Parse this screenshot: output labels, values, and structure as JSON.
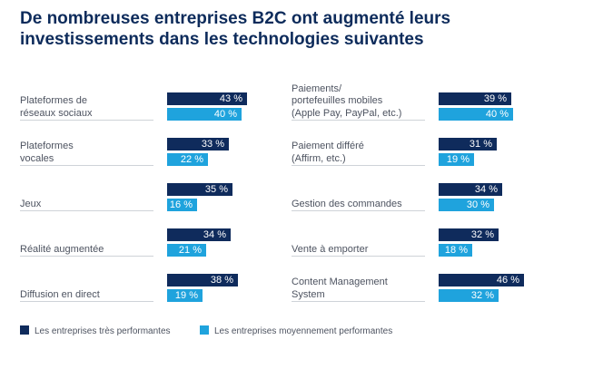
{
  "title_lines": [
    "De nombreuses entreprises B2C ont augmenté leurs",
    "investissements dans les technologies suivantes"
  ],
  "colors": {
    "high_performers": "#0f2b5c",
    "average_performers": "#1fa3dd"
  },
  "legend": {
    "high": "Les entreprises très performantes",
    "average": "Les entreprises moyennement performantes"
  },
  "chart_data": {
    "type": "bar",
    "orientation": "horizontal",
    "value_suffix": " %",
    "xlim": [
      0,
      50
    ],
    "grid": false,
    "legend_position": "bottom",
    "panels": [
      {
        "categories": [
          [
            "Plateformes de",
            "réseaux sociaux"
          ],
          [
            "Plateformes",
            "vocales"
          ],
          [
            "Jeux"
          ],
          [
            "Réalité augmentée"
          ],
          [
            "Diffusion en direct"
          ]
        ],
        "series": [
          {
            "name": "Les entreprises très performantes",
            "values": [
              43,
              33,
              35,
              34,
              38
            ]
          },
          {
            "name": "Les entreprises moyennement performantes",
            "values": [
              40,
              22,
              16,
              21,
              19
            ]
          }
        ]
      },
      {
        "categories": [
          [
            "Paiements/",
            "portefeuilles mobiles",
            "(Apple Pay, PayPal, etc.)"
          ],
          [
            "Paiement différé",
            "(Affirm, etc.)"
          ],
          [
            "Gestion des commandes"
          ],
          [
            "Vente à emporter"
          ],
          [
            "Content Management",
            "System"
          ]
        ],
        "series": [
          {
            "name": "Les entreprises très performantes",
            "values": [
              39,
              31,
              34,
              32,
              46
            ]
          },
          {
            "name": "Les entreprises moyennement performantes",
            "values": [
              40,
              19,
              30,
              18,
              32
            ]
          }
        ]
      }
    ]
  }
}
